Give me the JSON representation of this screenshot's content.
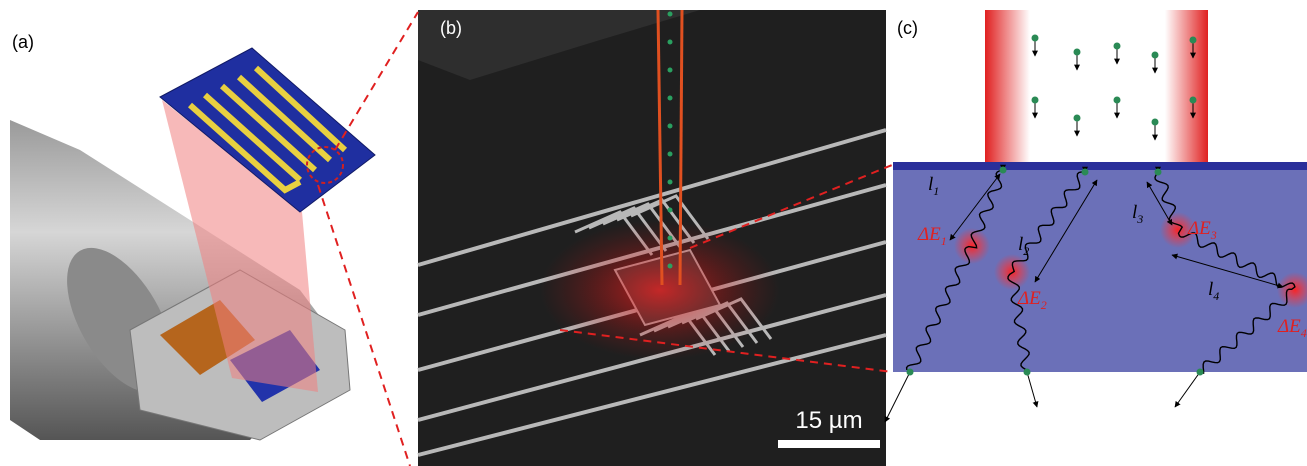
{
  "panels": [
    {
      "label": "(a)"
    },
    {
      "label": "(b)",
      "scale_bar": "15 µm"
    },
    {
      "label": "(c)",
      "lengths": [
        {
          "symbol": "l",
          "sub": "1"
        },
        {
          "symbol": "l",
          "sub": "2"
        },
        {
          "symbol": "l",
          "sub": "3"
        },
        {
          "symbol": "l",
          "sub": "4"
        }
      ],
      "energies": [
        {
          "symbol": "ΔE",
          "sub": "1"
        },
        {
          "symbol": "ΔE",
          "sub": "2"
        },
        {
          "symbol": "ΔE",
          "sub": "3"
        },
        {
          "symbol": "ΔE",
          "sub": "4"
        }
      ]
    }
  ]
}
